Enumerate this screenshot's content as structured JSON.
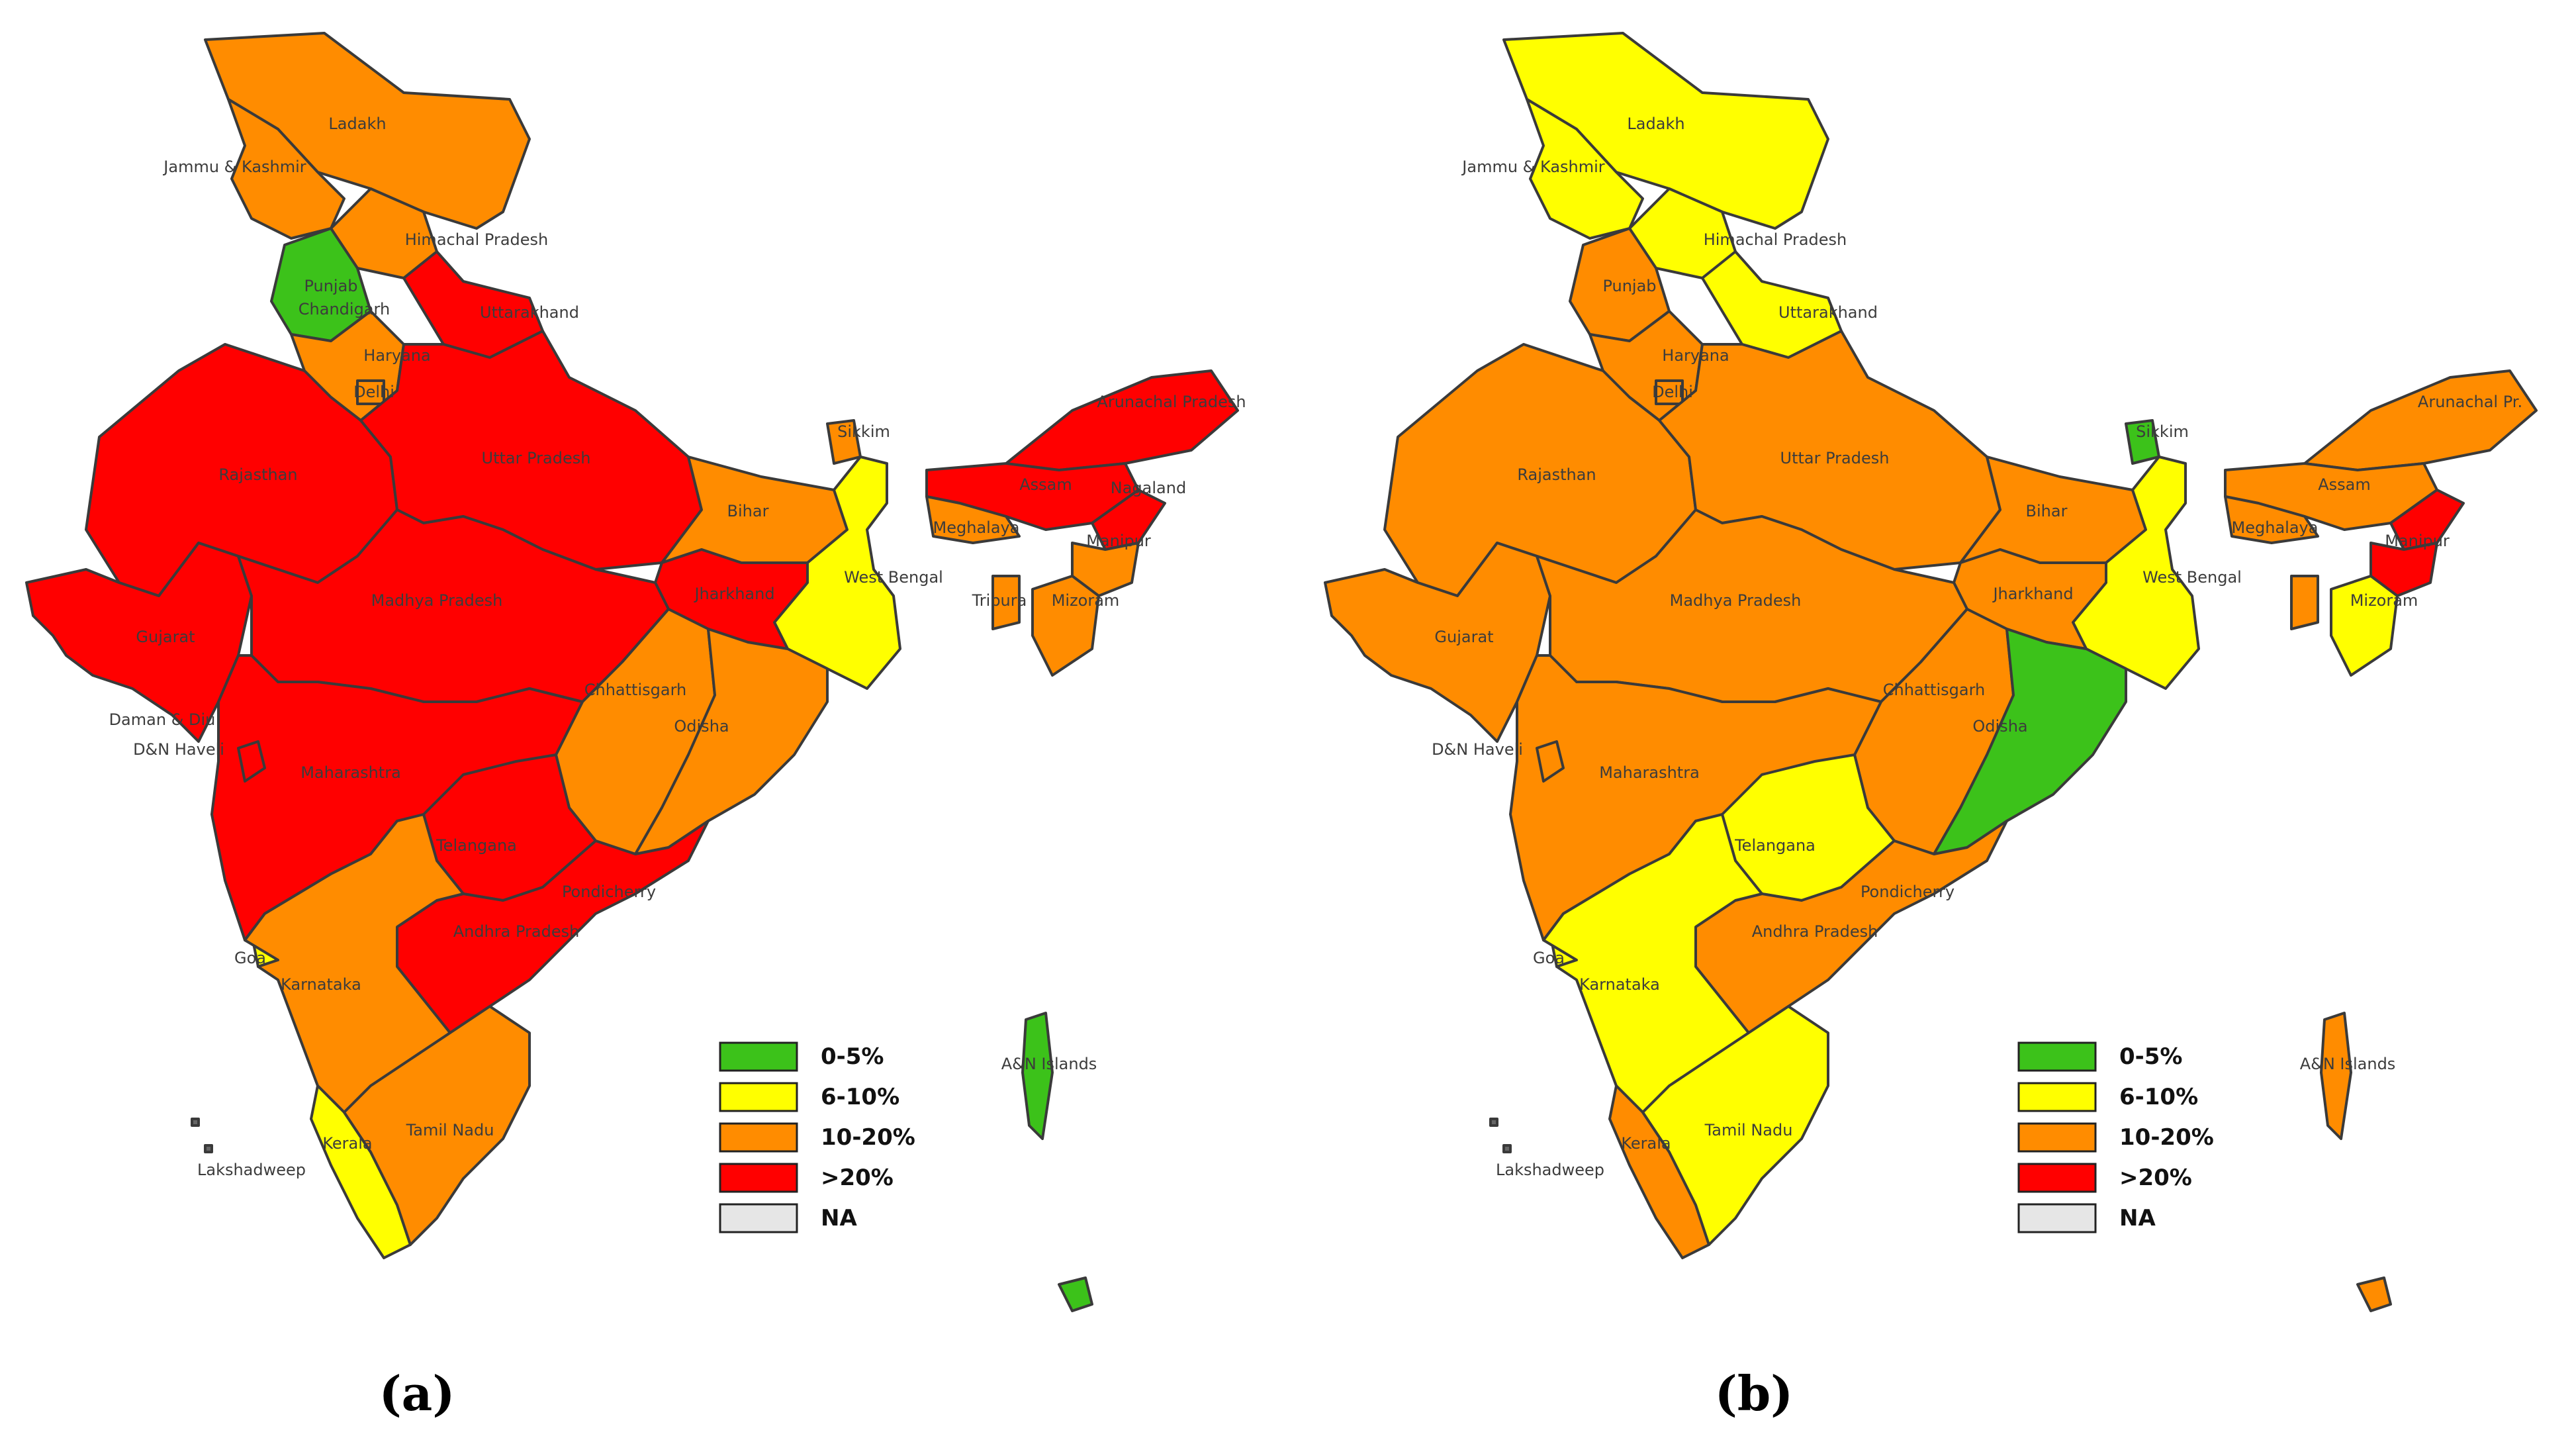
{
  "colors": {
    "c0_5": "#3cc21a",
    "c6_10": "#ffff00",
    "c10_20": "#ff8c00",
    "cgt20": "#ff0000",
    "na": "#e6e6e6"
  },
  "legend": [
    {
      "label": "0-5%",
      "color": "#3cc21a"
    },
    {
      "label": "6-10%",
      "color": "#ffff00"
    },
    {
      "label": "10-20%",
      "color": "#ff8c00"
    },
    {
      "label": ">20%",
      "color": "#ff0000"
    },
    {
      "label": "NA",
      "color": "#e6e6e6"
    }
  ],
  "maps": [
    {
      "caption": "(a)",
      "labels": {
        "ladakh": "Ladakh",
        "jk": "Jammu & Kashmir",
        "hp": "Himachal Pradesh",
        "punjab": "Punjab",
        "chandigarh": "Chandigarh",
        "uttarakhand": "Uttarakhand",
        "haryana": "Haryana",
        "delhi": "Delhi",
        "rajasthan": "Rajasthan",
        "up": "Uttar Pradesh",
        "bihar": "Bihar",
        "sikkim": "Sikkim",
        "arunachal": "Arunachal Pradesh",
        "assam": "Assam",
        "nagaland": "Nagaland",
        "meghalaya": "Meghalaya",
        "manipur": "Manipur",
        "tripura": "Tripura",
        "mizoram": "Mizoram",
        "wb": "West Bengal",
        "jharkhand": "Jharkhand",
        "gujarat": "Gujarat",
        "mp": "Madhya Pradesh",
        "chhattisgarh": "Chhattisgarh",
        "odisha": "Odisha",
        "daman": "Daman & Diu",
        "dnh": "D&N Haveli",
        "maharashtra": "Maharashtra",
        "telangana": "Telangana",
        "puducherry": "Pondicherry",
        "ap": "Andhra Pradesh",
        "goa": "Goa",
        "karnataka": "Karnataka",
        "kerala": "Kerala",
        "tn": "Tamil Nadu",
        "lakshadweep": "Lakshadweep",
        "an": "A&N Islands"
      },
      "values": {
        "ladakh": "10-20%",
        "jk": "10-20%",
        "hp": "10-20%",
        "punjab": "0-5%",
        "uttarakhand": ">20%",
        "haryana": "10-20%",
        "delhi": "10-20%",
        "rajasthan": ">20%",
        "up": ">20%",
        "bihar": "10-20%",
        "sikkim": "10-20%",
        "arunachal": ">20%",
        "assam": ">20%",
        "nagaland": ">20%",
        "meghalaya": "10-20%",
        "manipur": "10-20%",
        "tripura": "10-20%",
        "mizoram": "10-20%",
        "wb": "6-10%",
        "jharkhand": ">20%",
        "gujarat": ">20%",
        "mp": ">20%",
        "chhattisgarh": "10-20%",
        "odisha": "10-20%",
        "maharashtra": ">20%",
        "telangana": ">20%",
        "ap": ">20%",
        "goa": "6-10%",
        "karnataka": "10-20%",
        "kerala": "6-10%",
        "tn": "10-20%",
        "an": "0-5%",
        "coast": ">20%"
      }
    },
    {
      "caption": "(b)",
      "labels": {
        "ladakh": "Ladakh",
        "jk": "Jammu & Kashmir",
        "hp": "Himachal Pradesh",
        "punjab": "Punjab",
        "uttarakhand": "Uttarakhand",
        "haryana": "Haryana",
        "delhi": "Delhi",
        "rajasthan": "Rajasthan",
        "up": "Uttar Pradesh",
        "bihar": "Bihar",
        "sikkim": "Sikkim",
        "arunachal": "Arunachal Pr.",
        "assam": "Assam",
        "meghalaya": "Meghalaya",
        "manipur": "Manipur",
        "mizoram": "Mizoram",
        "wb": "West Bengal",
        "jharkhand": "Jharkhand",
        "gujarat": "Gujarat",
        "mp": "Madhya Pradesh",
        "chhattisgarh": "Chhattisgarh",
        "odisha": "Odisha",
        "dnh": "D&N Haveli",
        "maharashtra": "Maharashtra",
        "telangana": "Telangana",
        "puducherry": "Pondicherry",
        "ap": "Andhra Pradesh",
        "goa": "Goa",
        "karnataka": "Karnataka",
        "kerala": "Kerala",
        "tn": "Tamil Nadu",
        "lakshadweep": "Lakshadweep",
        "an": "A&N Islands"
      },
      "values": {
        "ladakh": "6-10%",
        "jk": "6-10%",
        "hp": "6-10%",
        "punjab": "10-20%",
        "uttarakhand": "6-10%",
        "haryana": "10-20%",
        "delhi": "10-20%",
        "rajasthan": "10-20%",
        "up": "10-20%",
        "bihar": "10-20%",
        "sikkim": "0-5%",
        "arunachal": "10-20%",
        "assam": "10-20%",
        "nagaland": ">20%",
        "meghalaya": "10-20%",
        "manipur": ">20%",
        "tripura": "10-20%",
        "mizoram": "6-10%",
        "wb": "6-10%",
        "jharkhand": "10-20%",
        "gujarat": "10-20%",
        "mp": "10-20%",
        "chhattisgarh": "10-20%",
        "odisha": "0-5%",
        "maharashtra": "10-20%",
        "telangana": "6-10%",
        "ap": "10-20%",
        "goa": "6-10%",
        "karnataka": "6-10%",
        "kerala": "10-20%",
        "tn": "6-10%",
        "an": "10-20%",
        "coast": "10-20%"
      }
    }
  ]
}
